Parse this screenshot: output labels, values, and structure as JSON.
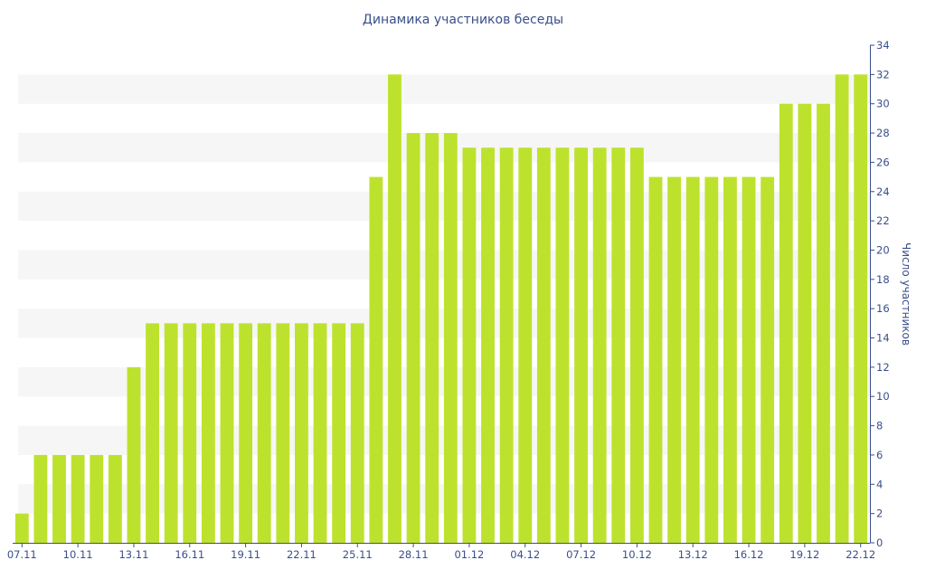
{
  "chart_data": {
    "type": "bar",
    "title": "Динамика участников беседы",
    "ylabel": "Число участников",
    "xlabel": "",
    "ylim": [
      0,
      34
    ],
    "yticks": [
      0,
      2,
      4,
      6,
      8,
      10,
      12,
      14,
      16,
      18,
      20,
      22,
      24,
      26,
      28,
      30,
      32,
      34
    ],
    "categories": [
      "07.11",
      "08.11",
      "09.11",
      "10.11",
      "11.11",
      "12.11",
      "13.11",
      "14.11",
      "15.11",
      "16.11",
      "17.11",
      "18.11",
      "19.11",
      "20.11",
      "21.11",
      "22.11",
      "23.11",
      "24.11",
      "25.11",
      "26.11",
      "27.11",
      "28.11",
      "29.11",
      "30.11",
      "01.12",
      "02.12",
      "03.12",
      "04.12",
      "05.12",
      "06.12",
      "07.12",
      "08.12",
      "09.12",
      "10.12",
      "11.12",
      "12.12",
      "13.12",
      "14.12",
      "15.12",
      "16.12",
      "17.12",
      "18.12",
      "19.12",
      "20.12",
      "21.12",
      "22.12"
    ],
    "xtick_labels": [
      "07.11",
      "10.11",
      "13.11",
      "16.11",
      "19.11",
      "22.11",
      "25.11",
      "28.11",
      "01.12",
      "04.12",
      "07.12",
      "10.12",
      "13.12",
      "16.12",
      "19.12",
      "22.12"
    ],
    "values": [
      2,
      6,
      6,
      6,
      6,
      6,
      12,
      15,
      15,
      15,
      15,
      15,
      15,
      15,
      15,
      15,
      15,
      15,
      15,
      25,
      32,
      28,
      28,
      28,
      27,
      27,
      27,
      27,
      27,
      27,
      27,
      27,
      27,
      27,
      25,
      25,
      25,
      25,
      25,
      25,
      25,
      30,
      30,
      30,
      32,
      32
    ],
    "bar_color": "#bde22d",
    "band_color": "#f6f6f6",
    "text_color": "#3a4f8a",
    "grid": "alternating-bands",
    "y_axis_position": "right"
  }
}
